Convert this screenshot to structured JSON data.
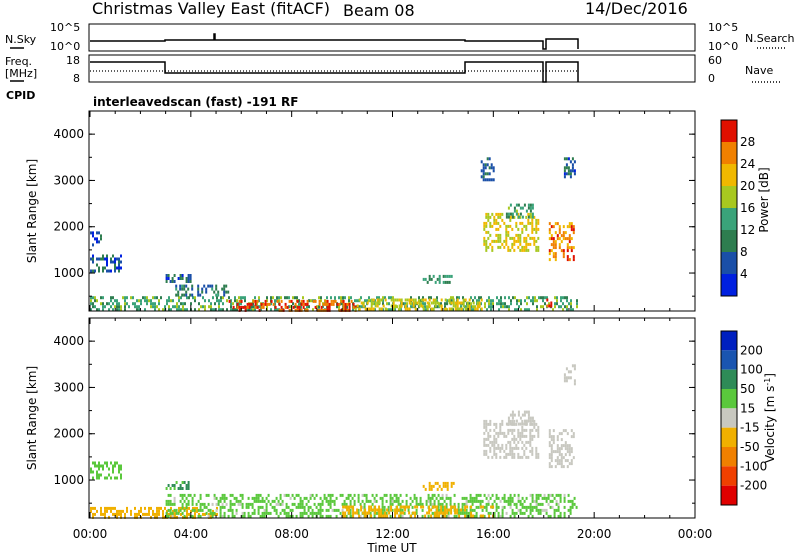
{
  "header": {
    "title": "Christmas Valley East (fitACF)",
    "beam": "Beam 08",
    "date": "14/Dec/2016"
  },
  "panels": {
    "nsky": {
      "left_label": "N.Sky",
      "left_ticks": [
        "10^5",
        "10^0"
      ],
      "right_ticks": [
        "10^5",
        "10^0"
      ],
      "right_label": "N.Search"
    },
    "freq": {
      "left_label_1": "Freq.",
      "left_label_2": "[MHz]",
      "left_ticks": [
        "18",
        "8"
      ],
      "right_ticks": [
        "60",
        "0"
      ],
      "right_label": "Nave"
    },
    "cpid": {
      "label": "CPID",
      "value": "interleavedscan (fast) -191 RF"
    }
  },
  "x_axis": {
    "label": "Time UT",
    "ticks": [
      "00:00",
      "04:00",
      "08:00",
      "12:00",
      "16:00",
      "20:00",
      "00:00"
    ]
  },
  "colors": {
    "power_scale": [
      "#0020e0",
      "#1a4fa8",
      "#2e7d4f",
      "#3aa37a",
      "#a8c820",
      "#f0b800",
      "#f08000",
      "#e01000"
    ],
    "velocity_scale": [
      "#e00000",
      "#f04000",
      "#f08000",
      "#f0b000",
      "#c8c8c0",
      "#5ac83c",
      "#2e8b57",
      "#1a55b0",
      "#0020c0"
    ]
  },
  "chart_data": [
    {
      "type": "heatmap",
      "name": "power",
      "ylabel": "Slant Range [km]",
      "yticks": [
        "1000",
        "2000",
        "3000",
        "4000"
      ],
      "ylim": [
        180,
        4500
      ],
      "xlim_hours": [
        0,
        24
      ],
      "colorbar": {
        "label": "Power [dB]",
        "ticks": [
          "4",
          "8",
          "12",
          "16",
          "20",
          "24",
          "28"
        ],
        "range": [
          0,
          32
        ]
      },
      "regions": [
        {
          "t0": 0.0,
          "t1": 19.3,
          "r0": 200,
          "r1": 500,
          "value": 14
        },
        {
          "t0": 5.5,
          "t1": 10.5,
          "r0": 220,
          "r1": 420,
          "value": 28
        },
        {
          "t0": 10.5,
          "t1": 15.5,
          "r0": 250,
          "r1": 450,
          "value": 20
        },
        {
          "t0": 0.0,
          "t1": 1.2,
          "r0": 1050,
          "r1": 1400,
          "value": 6
        },
        {
          "t0": 0.0,
          "t1": 0.4,
          "r0": 1600,
          "r1": 1900,
          "value": 5
        },
        {
          "t0": 3.0,
          "t1": 4.0,
          "r0": 820,
          "r1": 980,
          "value": 7
        },
        {
          "t0": 3.3,
          "t1": 5.5,
          "r0": 550,
          "r1": 750,
          "value": 9
        },
        {
          "t0": 13.2,
          "t1": 14.5,
          "r0": 780,
          "r1": 960,
          "value": 12
        },
        {
          "t0": 15.6,
          "t1": 17.8,
          "r0": 1500,
          "r1": 2300,
          "value": 20
        },
        {
          "t0": 16.5,
          "t1": 17.6,
          "r0": 2200,
          "r1": 2500,
          "value": 13
        },
        {
          "t0": 15.5,
          "t1": 16.0,
          "r0": 3000,
          "r1": 3500,
          "value": 8
        },
        {
          "t0": 18.2,
          "t1": 19.2,
          "r0": 1300,
          "r1": 2100,
          "value": 26
        },
        {
          "t0": 18.8,
          "t1": 19.2,
          "r0": 3100,
          "r1": 3500,
          "value": 7
        },
        {
          "t0": 18.1,
          "t1": 18.3,
          "r0": 300,
          "r1": 450,
          "value": 30
        }
      ]
    },
    {
      "type": "heatmap",
      "name": "velocity",
      "ylabel": "Slant Range [km]",
      "yticks": [
        "1000",
        "2000",
        "3000",
        "4000"
      ],
      "ylim": [
        180,
        4500
      ],
      "xlim_hours": [
        0,
        24
      ],
      "colorbar": {
        "label": "Velocity [m s^-1]",
        "ticks": [
          "200",
          "100",
          "50",
          "15",
          "-15",
          "-50",
          "-100",
          "-200"
        ],
        "range": [
          -250,
          250
        ]
      },
      "regions": [
        {
          "t0": 0.0,
          "t1": 5.0,
          "r0": 200,
          "r1": 420,
          "value": -60
        },
        {
          "t0": 3.0,
          "t1": 19.3,
          "r0": 200,
          "r1": 700,
          "value": 40
        },
        {
          "t0": 10.0,
          "t1": 16.0,
          "r0": 220,
          "r1": 450,
          "value": -50
        },
        {
          "t0": 0.0,
          "t1": 1.2,
          "r0": 1050,
          "r1": 1400,
          "value": 45
        },
        {
          "t0": 3.0,
          "t1": 4.0,
          "r0": 820,
          "r1": 980,
          "value": 90
        },
        {
          "t0": 13.2,
          "t1": 14.5,
          "r0": 780,
          "r1": 960,
          "value": -60
        },
        {
          "t0": 15.6,
          "t1": 17.8,
          "r0": 1500,
          "r1": 2300,
          "value": 0
        },
        {
          "t0": 16.5,
          "t1": 17.6,
          "r0": 2200,
          "r1": 2500,
          "value": 0
        },
        {
          "t0": 18.2,
          "t1": 19.2,
          "r0": 1300,
          "r1": 2100,
          "value": 0
        },
        {
          "t0": 18.8,
          "t1": 19.2,
          "r0": 3100,
          "r1": 3500,
          "value": 0
        }
      ]
    }
  ]
}
